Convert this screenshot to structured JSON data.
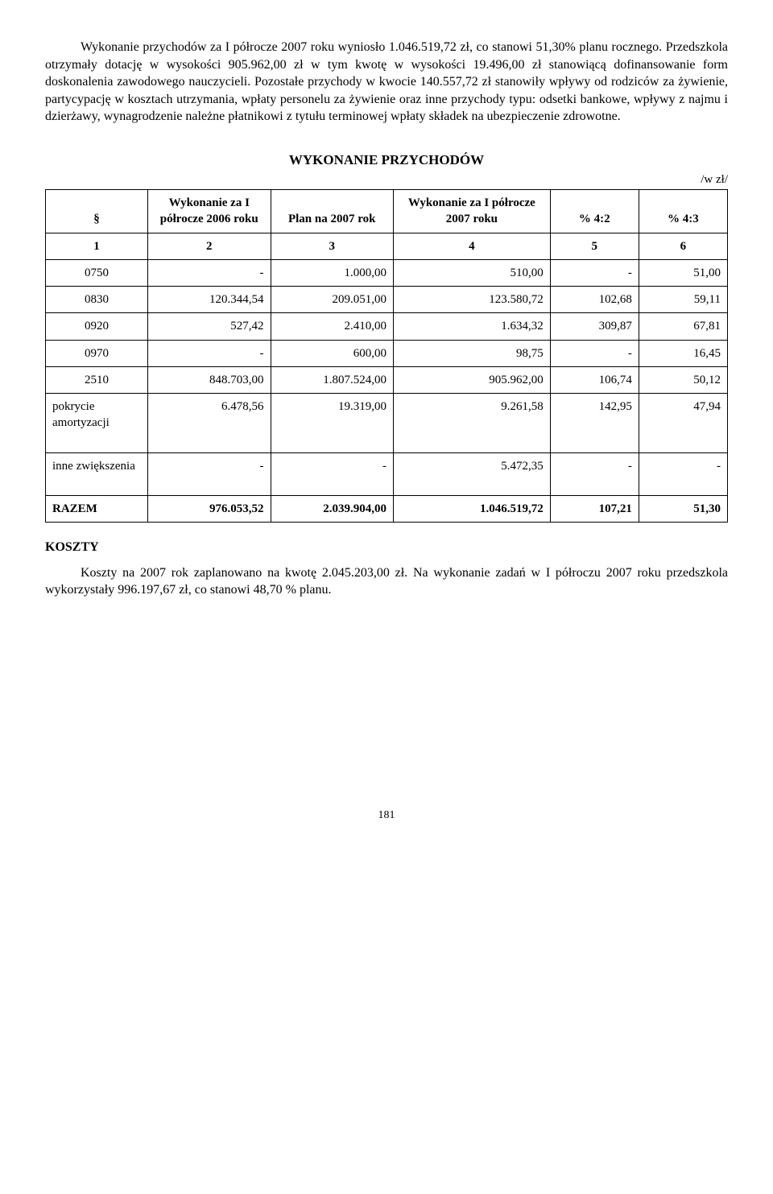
{
  "paragraph1": "Wykonanie przychodów za I półrocze 2007 roku wyniosło 1.046.519,72 zł, co stanowi 51,30% planu rocznego. Przedszkola otrzymały dotację  w wysokości 905.962,00 zł w tym kwotę w wysokości 19.496,00 zł stanowiącą dofinansowanie form doskonalenia zawodowego nauczycieli. Pozostałe przychody w kwocie 140.557,72 zł  stanowiły wpływy od rodziców  za żywienie, partycypację w kosztach utrzymania, wpłaty personelu za żywienie oraz inne przychody typu: odsetki bankowe, wpływy z najmu i dzierżawy, wynagrodzenie należne płatnikowi z tytułu terminowej wpłaty składek na ubezpieczenie zdrowotne.",
  "table_title": "WYKONANIE   PRZYCHODÓW",
  "unit_note": "/w zł/",
  "headers": {
    "c1": "§",
    "c2": "Wykonanie za I półrocze 2006 roku",
    "c3": "Plan na 2007 rok",
    "c4": "Wykonanie za I półrocze 2007 roku",
    "c5": "% 4:2",
    "c6": "% 4:3"
  },
  "numrow": {
    "c1": "1",
    "c2": "2",
    "c3": "3",
    "c4": "4",
    "c5": "5",
    "c6": "6"
  },
  "rows": [
    {
      "c1": "0750",
      "c2": "-",
      "c3": "1.000,00",
      "c4": "510,00",
      "c5": "-",
      "c6": "51,00"
    },
    {
      "c1": "0830",
      "c2": "120.344,54",
      "c3": "209.051,00",
      "c4": "123.580,72",
      "c5": "102,68",
      "c6": "59,11"
    },
    {
      "c1": "0920",
      "c2": "527,42",
      "c3": "2.410,00",
      "c4": "1.634,32",
      "c5": "309,87",
      "c6": "67,81"
    },
    {
      "c1": "0970",
      "c2": "-",
      "c3": "600,00",
      "c4": "98,75",
      "c5": "-",
      "c6": "16,45"
    },
    {
      "c1": "2510",
      "c2": "848.703,00",
      "c3": "1.807.524,00",
      "c4": "905.962,00",
      "c5": "106,74",
      "c6": "50,12"
    },
    {
      "c1": "pokrycie amortyzacji",
      "c2": "6.478,56",
      "c3": "19.319,00",
      "c4": "9.261,58",
      "c5": "142,95",
      "c6": "47,94"
    },
    {
      "c1": "inne zwiększenia",
      "c2": "-",
      "c3": "-",
      "c4": "5.472,35",
      "c5": "-",
      "c6": "-"
    }
  ],
  "total": {
    "c1": "RAZEM",
    "c2": "976.053,52",
    "c3": "2.039.904,00",
    "c4": "1.046.519,72",
    "c5": "107,21",
    "c6": "51,30"
  },
  "koszty_heading": "KOSZTY",
  "paragraph2": "Koszty na 2007 rok zaplanowano na kwotę 2.045.203,00 zł. Na wykonanie zadań w I półroczu 2007 roku przedszkola wykorzystały 996.197,67 zł, co stanowi 48,70 % planu.",
  "page_number": "181"
}
